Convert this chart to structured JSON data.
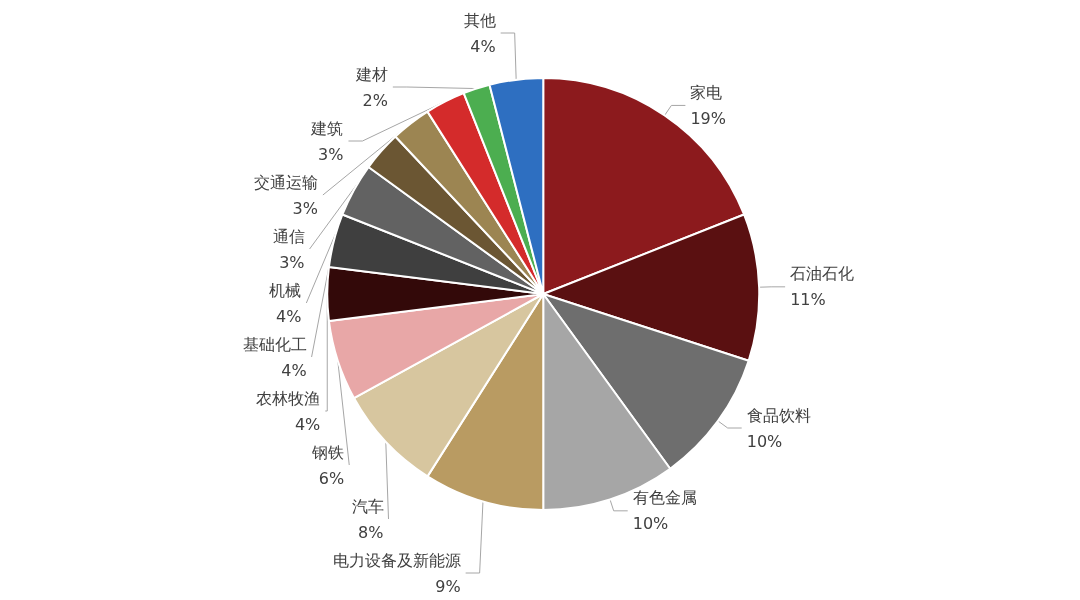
{
  "chart_data": {
    "type": "pie",
    "categories": [
      "家电",
      "石油石化",
      "食品饮料",
      "有色金属",
      "电力设备及新能源",
      "汽车",
      "钢铁",
      "农林牧渔",
      "基础化工",
      "机械",
      "通信",
      "交通运输",
      "建筑",
      "建材",
      "其他"
    ],
    "values": [
      19,
      11,
      10,
      10,
      9,
      8,
      6,
      4,
      4,
      4,
      3,
      3,
      3,
      2,
      4
    ],
    "value_labels": [
      "19%",
      "11%",
      "10%",
      "10%",
      "9%",
      "8%",
      "6%",
      "4%",
      "4%",
      "4%",
      "3%",
      "3%",
      "3%",
      "2%",
      "4%"
    ],
    "colors": [
      "#8c1a1d",
      "#5a1011",
      "#6e6e6e",
      "#a6a6a6",
      "#b99b62",
      "#d7c69f",
      "#e8a7a7",
      "#330909",
      "#3f3f3f",
      "#626262",
      "#6b5633",
      "#9c8552",
      "#d42b2b",
      "#4cae50",
      "#2e6fc1"
    ],
    "legend": false
  }
}
